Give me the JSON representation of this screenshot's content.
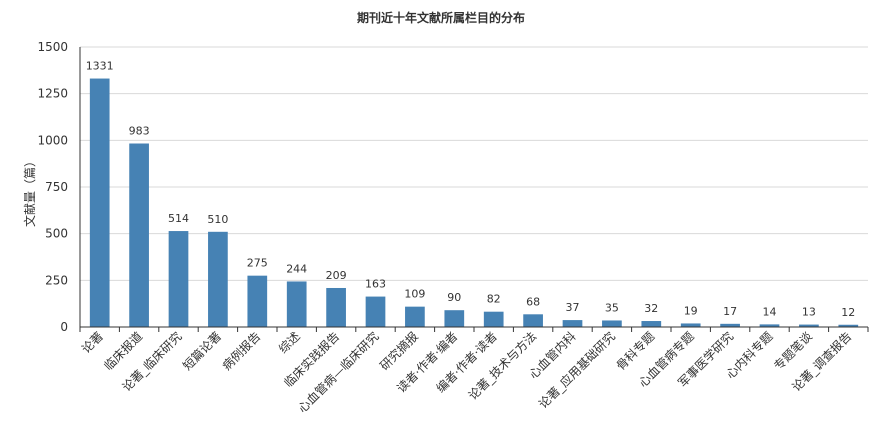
{
  "chart_data": {
    "type": "bar",
    "title": "期刊近十年文献所属栏目的分布",
    "xlabel": "",
    "ylabel": "文献量（篇）",
    "ylim": [
      0,
      1500
    ],
    "yticks": [
      0,
      250,
      500,
      750,
      1000,
      1250,
      1500
    ],
    "grid": true,
    "legend": "none",
    "bar_color": "#4682b4",
    "categories": [
      "论著",
      "临床报道",
      "论著_临床研究",
      "短篇论著",
      "病例报告",
      "综述",
      "临床实践报告",
      "心血管病—临床研究",
      "研究摘报",
      "读者·作者·编者",
      "编者·作者·读者",
      "论著_技术与方法",
      "心血管内科",
      "论著_应用基础研究",
      "骨科专题",
      "心血管病专题",
      "军事医学研究",
      "心内科专题",
      "专题笔谈",
      "论著_调查报告"
    ],
    "values": [
      1331,
      983,
      514,
      510,
      275,
      244,
      209,
      163,
      109,
      90,
      82,
      68,
      37,
      35,
      32,
      19,
      17,
      14,
      13,
      12
    ]
  }
}
